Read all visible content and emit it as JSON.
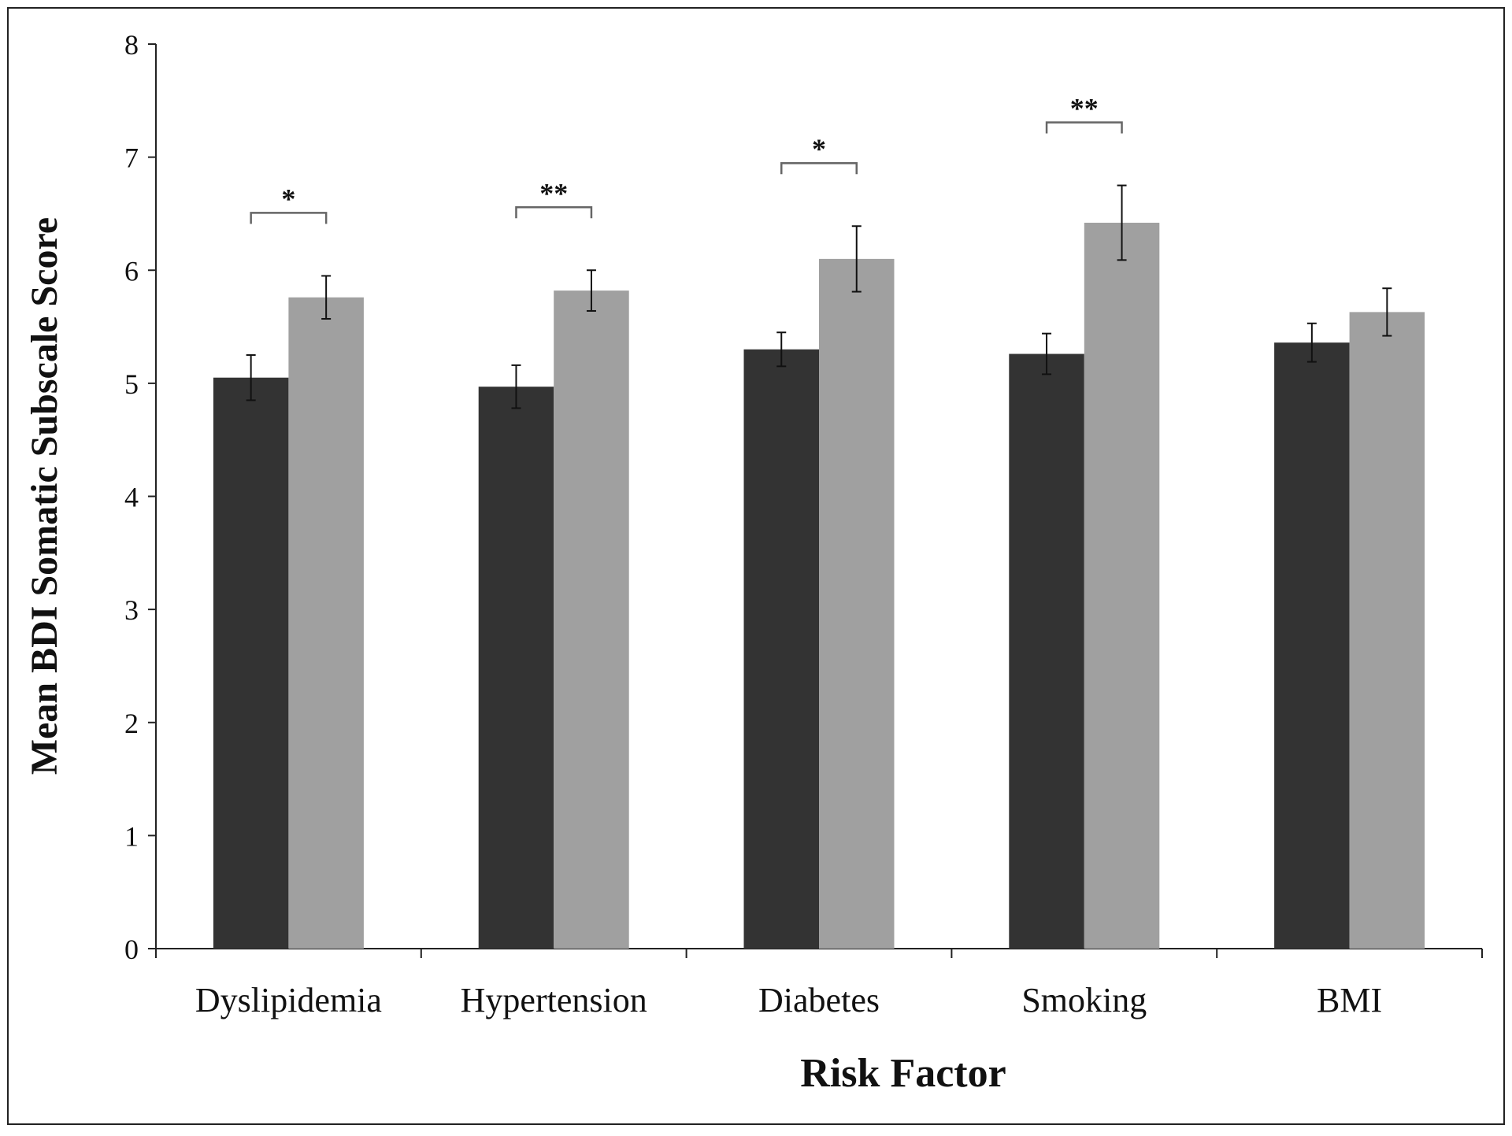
{
  "chart_data": {
    "type": "bar",
    "xlabel": "Risk Factor",
    "ylabel": "Mean BDI Somatic Subscale Score",
    "categories": [
      "Dyslipidemia",
      "Hypertension",
      "Diabetes",
      "Smoking",
      "BMI"
    ],
    "series": [
      {
        "color": "#333333",
        "values": [
          5.05,
          4.97,
          5.3,
          5.26,
          5.36
        ],
        "errors": [
          0.2,
          0.19,
          0.15,
          0.18,
          0.17
        ]
      },
      {
        "color": "#a0a0a0",
        "values": [
          5.76,
          5.82,
          6.1,
          6.42,
          5.63
        ],
        "errors": [
          0.19,
          0.18,
          0.29,
          0.33,
          0.21
        ]
      }
    ],
    "significance": [
      "*",
      "**",
      "*",
      "**",
      null
    ],
    "ylim": [
      0,
      8
    ],
    "yticks": [
      0,
      1,
      2,
      3,
      4,
      5,
      6,
      7,
      8
    ]
  }
}
